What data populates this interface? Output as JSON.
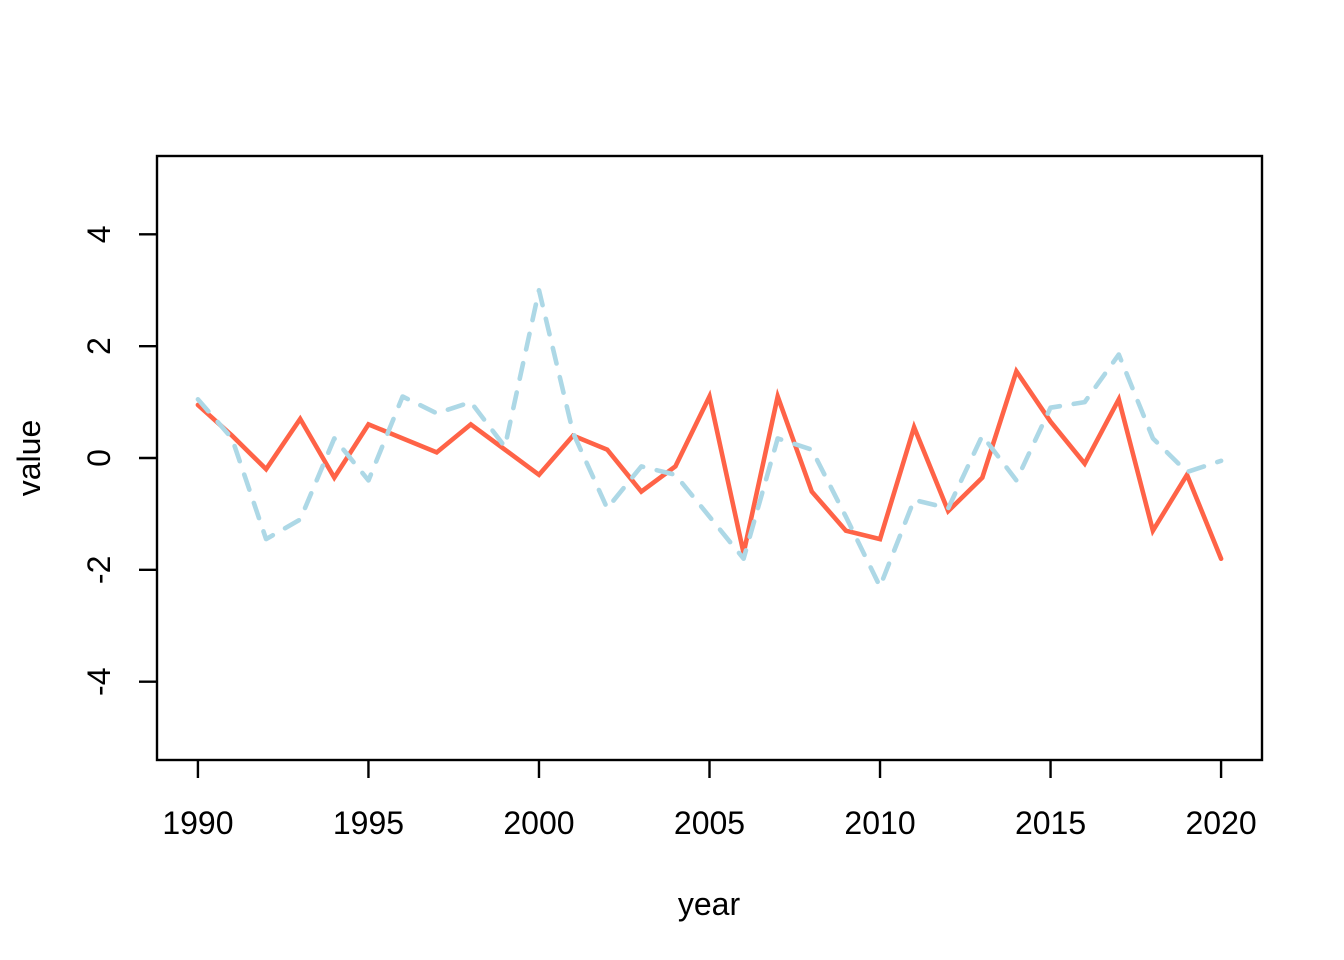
{
  "chart_data": {
    "type": "line",
    "title": "",
    "xlabel": "year",
    "ylabel": "value",
    "x": [
      1990,
      1991,
      1992,
      1993,
      1994,
      1995,
      1996,
      1997,
      1998,
      1999,
      2000,
      2001,
      2002,
      2003,
      2004,
      2005,
      2006,
      2007,
      2008,
      2009,
      2010,
      2011,
      2012,
      2013,
      2014,
      2015,
      2016,
      2017,
      2018,
      2019,
      2020
    ],
    "series": [
      {
        "name": "red-solid-series",
        "color": "#FF6347",
        "line_style": "solid",
        "values": [
          0.95,
          0.4,
          -0.2,
          0.7,
          -0.35,
          0.6,
          0.35,
          0.1,
          0.6,
          0.15,
          -0.3,
          0.4,
          0.15,
          -0.6,
          -0.15,
          1.1,
          -1.7,
          1.1,
          -0.6,
          -1.3,
          -1.45,
          0.55,
          -0.95,
          -0.35,
          1.55,
          0.65,
          -0.1,
          1.05,
          -1.3,
          -0.3,
          -1.8
        ]
      },
      {
        "name": "lightblue-dashed-series",
        "color": "#ADD8E6",
        "line_style": "dashed",
        "values": [
          1.05,
          0.35,
          -1.45,
          -1.1,
          0.35,
          -0.4,
          1.1,
          0.8,
          1.0,
          0.2,
          3.0,
          0.45,
          -0.9,
          -0.15,
          -0.3,
          -1.05,
          -1.8,
          0.35,
          0.15,
          -1.05,
          -2.3,
          -0.75,
          -0.9,
          0.4,
          -0.4,
          0.9,
          1.0,
          1.85,
          0.35,
          -0.25,
          -0.05
        ]
      }
    ],
    "xticks": [
      1990,
      1995,
      2000,
      2005,
      2010,
      2015,
      2020
    ],
    "yticks": [
      -4,
      -2,
      0,
      2,
      4
    ],
    "xlim": [
      1988.8,
      2021.2
    ],
    "ylim": [
      -5.4,
      5.4
    ],
    "grid": false,
    "legend": "none",
    "background_color": "#FFFFFF",
    "axis_color": "#000000"
  }
}
